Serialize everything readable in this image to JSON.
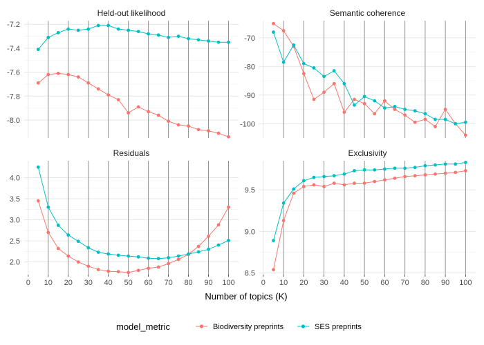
{
  "chart_data": {
    "type": "line",
    "xlabel": "Number of topics (K)",
    "x_ticks": [
      0,
      10,
      20,
      30,
      40,
      50,
      60,
      70,
      80,
      90,
      100
    ],
    "x_range": [
      -2,
      105
    ],
    "vertical_lines": [
      10,
      20,
      30,
      40,
      50,
      60,
      70,
      80,
      90,
      100
    ],
    "legend": {
      "title": "model_metric",
      "position": "bottom",
      "entries": [
        {
          "name": "Biodiversity preprints",
          "color": "#F8766D"
        },
        {
          "name": "SES preprints",
          "color": "#00BFC4"
        }
      ]
    },
    "panels": [
      {
        "title": "Held-out likelihood",
        "ylim": [
          -8.15,
          -7.17
        ],
        "y_ticks": [
          -8.0,
          -7.8,
          -7.6,
          -7.4,
          -7.2
        ],
        "y_tick_labels": [
          "-8.0",
          "-7.8",
          "-7.6",
          "-7.4",
          "-7.2"
        ],
        "x": [
          5,
          10,
          15,
          20,
          25,
          30,
          35,
          40,
          45,
          50,
          55,
          60,
          65,
          70,
          75,
          80,
          85,
          90,
          95,
          100
        ],
        "series": [
          {
            "name": "Biodiversity preprints",
            "values": [
              -7.69,
              -7.62,
              -7.61,
              -7.62,
              -7.64,
              -7.69,
              -7.74,
              -7.79,
              -7.83,
              -7.94,
              -7.89,
              -7.93,
              -7.96,
              -8.01,
              -8.04,
              -8.05,
              -8.08,
              -8.09,
              -8.11,
              -8.14
            ]
          },
          {
            "name": "SES preprints",
            "values": [
              -7.41,
              -7.31,
              -7.27,
              -7.24,
              -7.25,
              -7.24,
              -7.21,
              -7.21,
              -7.24,
              -7.25,
              -7.26,
              -7.28,
              -7.29,
              -7.31,
              -7.3,
              -7.32,
              -7.33,
              -7.34,
              -7.35,
              -7.35
            ]
          }
        ]
      },
      {
        "title": "Semantic coherence",
        "ylim": [
          -105,
          -64
        ],
        "y_ticks": [
          -100,
          -90,
          -80,
          -70
        ],
        "y_tick_labels": [
          "-100",
          "-90",
          "-80",
          "-70"
        ],
        "x": [
          5,
          10,
          15,
          20,
          25,
          30,
          35,
          40,
          45,
          50,
          55,
          60,
          65,
          70,
          75,
          80,
          85,
          90,
          95,
          100
        ],
        "series": [
          {
            "name": "Biodiversity preprints",
            "values": [
              -65.0,
              -67.5,
              -73.0,
              -82.5,
              -91.5,
              -89.0,
              -86.0,
              -96.0,
              -91.5,
              -93.0,
              -96.5,
              -92.0,
              -95.0,
              -97.0,
              -99.5,
              -98.5,
              -101.0,
              -95.0,
              -100.0,
              -104.0
            ]
          },
          {
            "name": "SES preprints",
            "values": [
              -68.0,
              -78.5,
              -72.5,
              -79.0,
              -80.5,
              -83.5,
              -81.5,
              -86.0,
              -93.5,
              -90.5,
              -92.0,
              -94.5,
              -94.0,
              -95.0,
              -95.5,
              -96.5,
              -98.5,
              -98.5,
              -100.0,
              -99.5
            ]
          }
        ]
      },
      {
        "title": "Residuals",
        "ylim": [
          1.7,
          4.4
        ],
        "y_ticks": [
          2.0,
          2.5,
          3.0,
          3.5,
          4.0
        ],
        "y_tick_labels": [
          "2.0",
          "2.5",
          "3.0",
          "3.5",
          "4.0"
        ],
        "x": [
          5,
          10,
          15,
          20,
          25,
          30,
          35,
          40,
          45,
          50,
          55,
          60,
          65,
          70,
          75,
          80,
          85,
          90,
          95,
          100
        ],
        "series": [
          {
            "name": "Biodiversity preprints",
            "values": [
              3.45,
              2.7,
              2.32,
              2.14,
              2.0,
              1.9,
              1.82,
              1.78,
              1.77,
              1.75,
              1.8,
              1.85,
              1.88,
              1.96,
              2.06,
              2.18,
              2.37,
              2.61,
              2.88,
              3.3
            ]
          },
          {
            "name": "SES preprints",
            "values": [
              4.25,
              3.3,
              2.87,
              2.64,
              2.49,
              2.34,
              2.23,
              2.19,
              2.16,
              2.14,
              2.12,
              2.09,
              2.08,
              2.1,
              2.14,
              2.19,
              2.24,
              2.3,
              2.4,
              2.51
            ]
          }
        ]
      },
      {
        "title": "Exclusivity",
        "ylim": [
          8.48,
          9.85
        ],
        "y_ticks": [
          8.5,
          9.0,
          9.5
        ],
        "y_tick_labels": [
          "8.5",
          "9.0",
          "9.5"
        ],
        "x": [
          5,
          10,
          15,
          20,
          25,
          30,
          35,
          40,
          45,
          50,
          55,
          60,
          65,
          70,
          75,
          80,
          85,
          90,
          95,
          100
        ],
        "series": [
          {
            "name": "Biodiversity preprints",
            "values": [
              8.54,
              9.13,
              9.46,
              9.54,
              9.56,
              9.54,
              9.58,
              9.56,
              9.58,
              9.58,
              9.6,
              9.62,
              9.64,
              9.66,
              9.67,
              9.68,
              9.69,
              9.7,
              9.71,
              9.73
            ]
          },
          {
            "name": "SES preprints",
            "values": [
              8.89,
              9.34,
              9.51,
              9.61,
              9.65,
              9.66,
              9.67,
              9.69,
              9.73,
              9.74,
              9.74,
              9.75,
              9.76,
              9.76,
              9.77,
              9.79,
              9.8,
              9.81,
              9.81,
              9.83
            ]
          }
        ]
      }
    ]
  }
}
